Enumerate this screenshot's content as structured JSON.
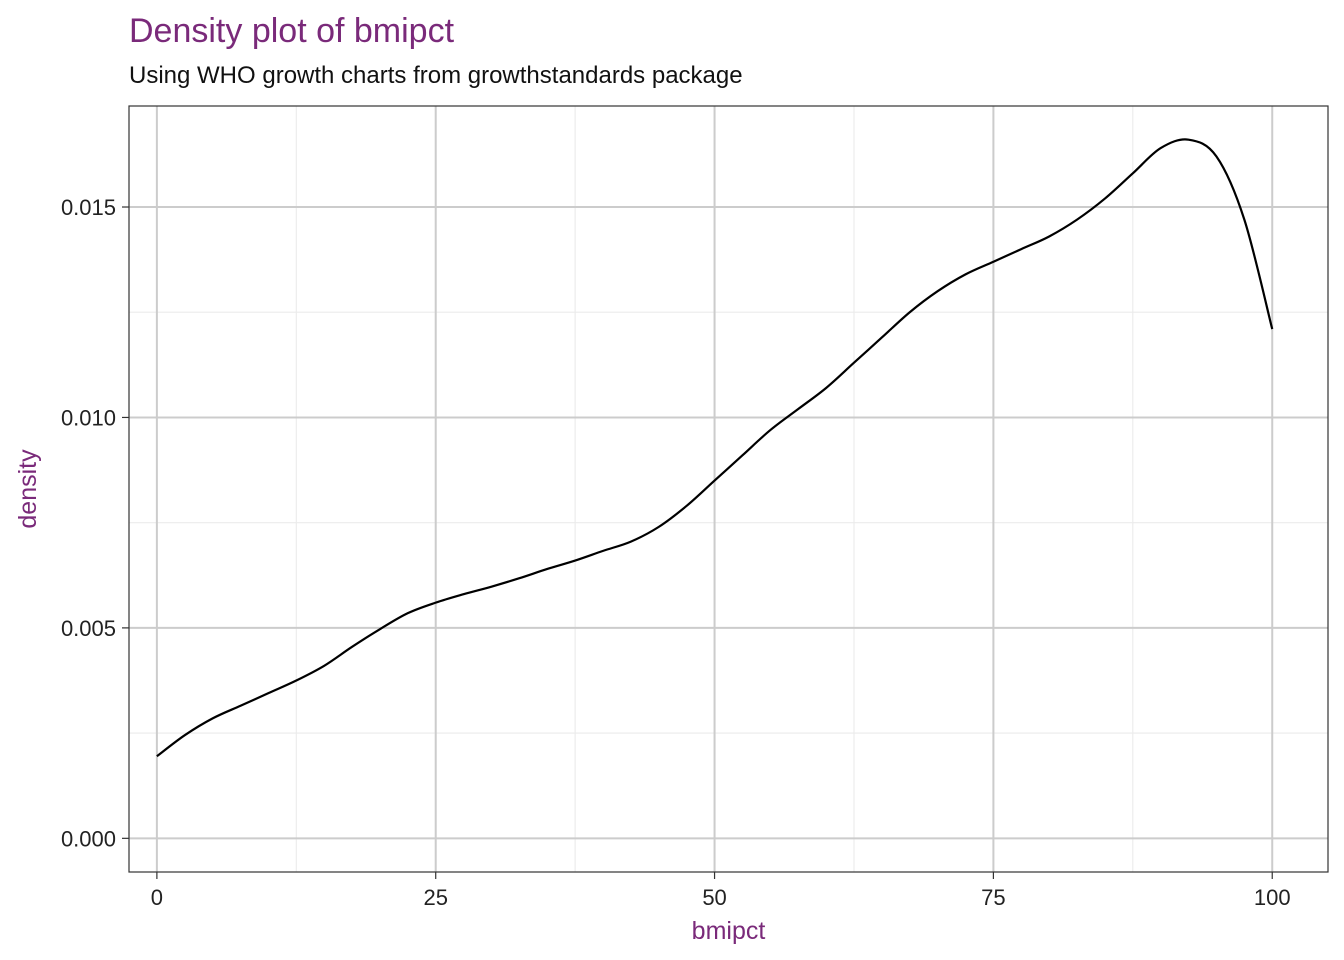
{
  "title": "Density plot of bmipct",
  "subtitle": "Using WHO growth charts from growthstandards package",
  "colors": {
    "title": "#7a2a7a",
    "axis_label": "#7a2a7a",
    "line": "#000000",
    "grid_major": "#cccccc",
    "grid_minor": "#ebebeb"
  },
  "chart_data": {
    "type": "line",
    "title": "Density plot of bmipct",
    "subtitle": "Using WHO growth charts from growthstandards package",
    "xlabel": "bmipct",
    "ylabel": "density",
    "xlim": [
      -2.5,
      105
    ],
    "ylim": [
      -0.0008,
      0.0174
    ],
    "x_ticks": [
      0,
      25,
      50,
      75,
      100
    ],
    "x_tick_labels": [
      "0",
      "25",
      "50",
      "75",
      "100"
    ],
    "y_ticks": [
      0.0,
      0.005,
      0.01,
      0.015
    ],
    "y_tick_labels": [
      "0.000",
      "0.005",
      "0.010",
      "0.015"
    ],
    "grid": true,
    "legend": "none",
    "series": [
      {
        "x": [
          0,
          2.5,
          5,
          7.5,
          10,
          12.5,
          15,
          17.5,
          20,
          22.5,
          25,
          27.5,
          30,
          32.5,
          35,
          37.5,
          40,
          42.5,
          45,
          47.5,
          50,
          52.5,
          55,
          57.5,
          60,
          62.5,
          65,
          67.5,
          70,
          72.5,
          75,
          77.5,
          80,
          82.5,
          85,
          87.5,
          90,
          92.5,
          95,
          97.5,
          100
        ],
        "y": [
          0.00195,
          0.00245,
          0.00285,
          0.00315,
          0.00345,
          0.00375,
          0.0041,
          0.00455,
          0.00497,
          0.00535,
          0.0056,
          0.0058,
          0.00598,
          0.00618,
          0.0064,
          0.0066,
          0.00683,
          0.00705,
          0.0074,
          0.0079,
          0.0085,
          0.0091,
          0.0097,
          0.0102,
          0.0107,
          0.0113,
          0.0119,
          0.0125,
          0.013,
          0.0134,
          0.0137,
          0.014,
          0.0143,
          0.0147,
          0.0152,
          0.0158,
          0.0164,
          0.0166,
          0.0162,
          0.0147,
          0.0121
        ]
      }
    ]
  }
}
